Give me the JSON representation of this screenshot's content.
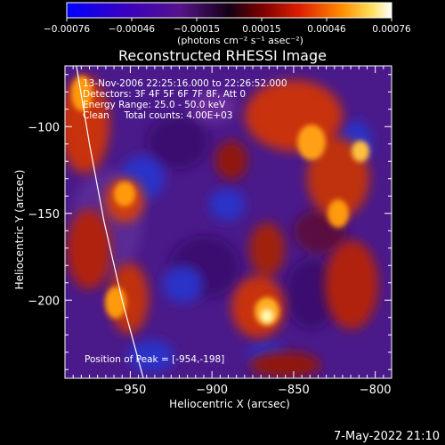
{
  "colorbar": {
    "ticks": [
      "-0.00076",
      "-0.00046",
      "-0.00015",
      "0.00015",
      "0.00046",
      "0.00076"
    ],
    "units": "(photons cm⁻² s⁻¹ asec⁻²)"
  },
  "footer": {
    "timestamp": "7-May-2022 21:10"
  },
  "chart_data": {
    "type": "heatmap",
    "title": "Reconstructed RHESSI Image",
    "xlabel": "Heliocentric X (arcsec)",
    "ylabel": "Heliocentric Y (arcsec)",
    "xlim": [
      -990,
      -790
    ],
    "ylim": [
      -245,
      -65
    ],
    "x_ticks": [
      -950,
      -900,
      -850,
      -800
    ],
    "y_ticks": [
      -100,
      -150,
      -200
    ],
    "x_tick_labels": [
      "−950",
      "−900",
      "−850",
      "−800"
    ],
    "y_tick_labels": [
      "−100",
      "−150",
      "−200"
    ],
    "color_range": [
      -0.00076,
      0.00076
    ],
    "annotations": [
      "13-Nov-2006 22:25:16.000 to 22:26:52.000",
      "Detectors: 3F 4F 5F 6F 7F 8F, Att 0",
      "Energy Range: 25.0 - 50.0 keV",
      "Clean     Total counts: 4.00E+03"
    ],
    "peak_label": "Position of Peak = [-954,-198]",
    "peak": [
      -954,
      -198
    ],
    "limb_curve": [
      [
        -983,
        -65
      ],
      [
        -975,
        -110
      ],
      [
        -966,
        -155
      ],
      [
        -955,
        -200
      ],
      [
        -942,
        -245
      ]
    ],
    "bright_regions": [
      {
        "x": -975,
        "y": -95,
        "level": 0.0006
      },
      {
        "x": -950,
        "y": -140,
        "level": 0.0005
      },
      {
        "x": -954,
        "y": -198,
        "level": 0.00076
      },
      {
        "x": -905,
        "y": -200,
        "level": 0.0006
      },
      {
        "x": -860,
        "y": -120,
        "level": 0.0006
      },
      {
        "x": -830,
        "y": -140,
        "level": 0.0006
      },
      {
        "x": -815,
        "y": -200,
        "level": 0.0005
      }
    ],
    "grid": false,
    "colormap": "blue-purple-red-yellow-white"
  }
}
